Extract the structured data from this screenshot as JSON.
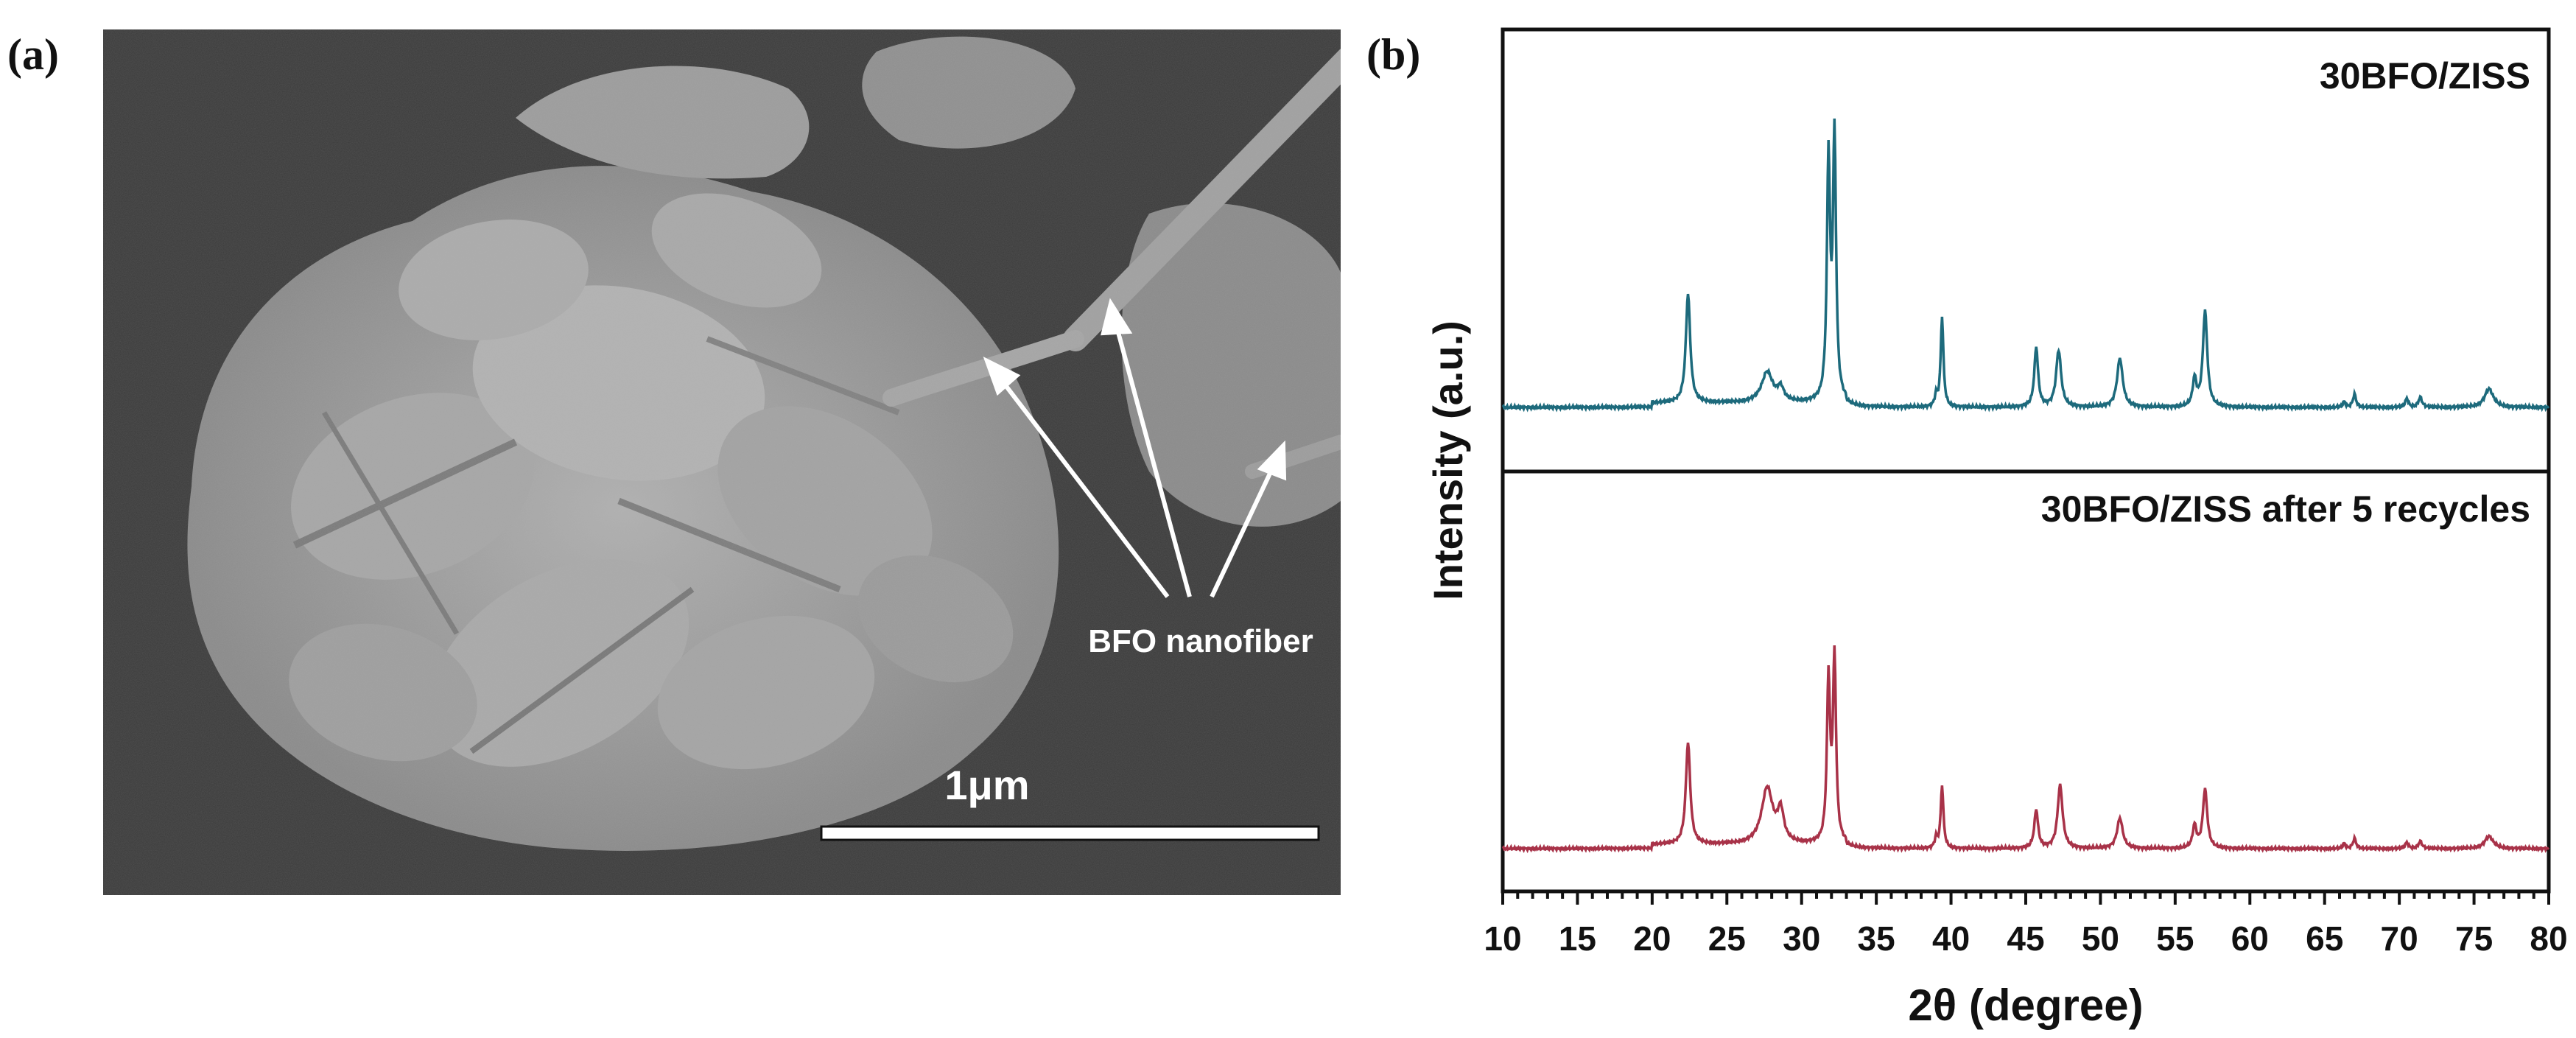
{
  "panel_a": {
    "label": "(a)",
    "annotation": "BFO nanofiber",
    "scale_bar_label": "1μm",
    "colors": {
      "background": "#3c3c3c",
      "particle": "#9a9a9a",
      "text": "#ffffff"
    }
  },
  "panel_b": {
    "label": "(b)"
  },
  "chart_data": {
    "type": "line",
    "title": "",
    "xlabel": "2θ (degree)",
    "ylabel": "Intensity (a.u.)",
    "xlim": [
      10,
      80
    ],
    "x_ticks": [
      10,
      15,
      20,
      25,
      30,
      35,
      40,
      45,
      50,
      55,
      60,
      65,
      70,
      75,
      80
    ],
    "x_tick_labels": [
      "10",
      "15",
      "20",
      "25",
      "30",
      "35",
      "40",
      "45",
      "50",
      "55",
      "60",
      "65",
      "70",
      "75",
      "80"
    ],
    "y_ticks": "none",
    "grid": false,
    "legend": "none (series labelled inside each stacked sub-panel)",
    "series": [
      {
        "name": "30BFO/ZISS",
        "color": "#1d6a7c",
        "peaks": [
          {
            "x": 22.4,
            "height": 1.0,
            "width": 0.35
          },
          {
            "x": 27.7,
            "height": 0.28,
            "width": 0.9
          },
          {
            "x": 28.6,
            "height": 0.12,
            "width": 0.5
          },
          {
            "x": 31.8,
            "height": 2.2,
            "width": 0.25
          },
          {
            "x": 32.2,
            "height": 2.4,
            "width": 0.25
          },
          {
            "x": 39.0,
            "height": 0.1,
            "width": 0.2
          },
          {
            "x": 39.4,
            "height": 0.83,
            "width": 0.22
          },
          {
            "x": 45.7,
            "height": 0.55,
            "width": 0.3
          },
          {
            "x": 47.2,
            "height": 0.52,
            "width": 0.4
          },
          {
            "x": 51.3,
            "height": 0.45,
            "width": 0.45
          },
          {
            "x": 56.3,
            "height": 0.25,
            "width": 0.3
          },
          {
            "x": 57.0,
            "height": 0.88,
            "width": 0.35
          },
          {
            "x": 66.3,
            "height": 0.05,
            "width": 0.2
          },
          {
            "x": 67.0,
            "height": 0.12,
            "width": 0.25
          },
          {
            "x": 70.5,
            "height": 0.08,
            "width": 0.25
          },
          {
            "x": 71.4,
            "height": 0.09,
            "width": 0.3
          },
          {
            "x": 76.0,
            "height": 0.17,
            "width": 0.7
          }
        ]
      },
      {
        "name": "30BFO/ZISS after 5 recycles",
        "color": "#a83248",
        "peaks": [
          {
            "x": 22.4,
            "height": 1.0,
            "width": 0.35
          },
          {
            "x": 27.7,
            "height": 0.55,
            "width": 0.9
          },
          {
            "x": 28.6,
            "height": 0.3,
            "width": 0.5
          },
          {
            "x": 31.8,
            "height": 1.6,
            "width": 0.25
          },
          {
            "x": 32.2,
            "height": 1.8,
            "width": 0.25
          },
          {
            "x": 39.0,
            "height": 0.1,
            "width": 0.2
          },
          {
            "x": 39.4,
            "height": 0.62,
            "width": 0.22
          },
          {
            "x": 45.7,
            "height": 0.38,
            "width": 0.3
          },
          {
            "x": 47.3,
            "height": 0.62,
            "width": 0.4
          },
          {
            "x": 51.3,
            "height": 0.3,
            "width": 0.45
          },
          {
            "x": 56.3,
            "height": 0.22,
            "width": 0.3
          },
          {
            "x": 57.0,
            "height": 0.58,
            "width": 0.35
          },
          {
            "x": 66.3,
            "height": 0.05,
            "width": 0.2
          },
          {
            "x": 67.0,
            "height": 0.1,
            "width": 0.25
          },
          {
            "x": 70.5,
            "height": 0.06,
            "width": 0.25
          },
          {
            "x": 71.4,
            "height": 0.07,
            "width": 0.3
          },
          {
            "x": 76.0,
            "height": 0.12,
            "width": 0.7
          }
        ]
      }
    ]
  }
}
